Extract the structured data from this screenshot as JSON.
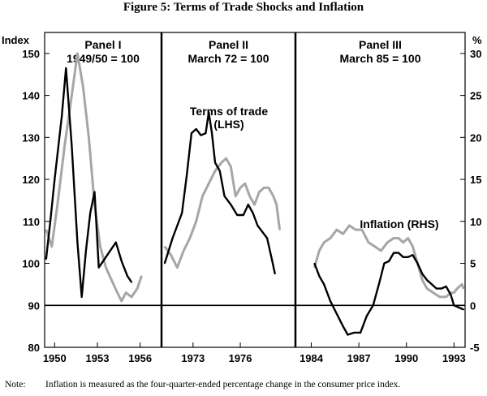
{
  "title": "Figure 5: Terms of Trade Shocks and Inflation",
  "note": {
    "label": "Note:",
    "text": "Inflation is measured as the four-quarter-ended percentage change in the consumer price index."
  },
  "colors": {
    "terms_of_trade": "#000000",
    "inflation": "#a6a6a6",
    "axes": "#000000"
  },
  "chart_data": {
    "type": "line",
    "left_axis": {
      "label": "Index",
      "min": 80,
      "max": 155,
      "ticks": [
        80,
        90,
        100,
        110,
        120,
        130,
        140,
        150
      ]
    },
    "right_axis": {
      "label": "%",
      "min": -5,
      "max": 32.5,
      "ticks": [
        -5,
        0,
        5,
        10,
        15,
        20,
        25,
        30
      ]
    },
    "x_tick_labels": [
      "1950",
      "1953",
      "1956",
      "1973",
      "1976",
      "1984",
      "1987",
      "1990",
      "1993"
    ],
    "panels": [
      {
        "name": "Panel I",
        "base": "1949/50 = 100",
        "x_range": [
          1949.3,
          1957.5
        ],
        "x_ticks": [
          1950,
          1953,
          1956
        ],
        "terms_of_trade": [
          [
            1949.4,
            101
          ],
          [
            1949.7,
            110
          ],
          [
            1950.0,
            120
          ],
          [
            1950.5,
            135
          ],
          [
            1950.8,
            146.5
          ],
          [
            1951.2,
            128
          ],
          [
            1951.6,
            105
          ],
          [
            1951.9,
            92
          ],
          [
            1952.2,
            103
          ],
          [
            1952.5,
            112
          ],
          [
            1952.8,
            117
          ],
          [
            1953.1,
            99
          ],
          [
            1953.4,
            100.5
          ],
          [
            1953.8,
            102.5
          ],
          [
            1954.3,
            105
          ],
          [
            1954.7,
            100.5
          ],
          [
            1955.1,
            97
          ],
          [
            1955.4,
            95.5
          ]
        ],
        "inflation": [
          [
            1949.4,
            9
          ],
          [
            1949.8,
            7
          ],
          [
            1950.2,
            12
          ],
          [
            1950.7,
            19
          ],
          [
            1951.2,
            25
          ],
          [
            1951.6,
            30
          ],
          [
            1952.0,
            26
          ],
          [
            1952.4,
            20
          ],
          [
            1952.8,
            12
          ],
          [
            1953.2,
            7
          ],
          [
            1953.6,
            4.5
          ],
          [
            1954.0,
            3
          ],
          [
            1954.4,
            1.5
          ],
          [
            1954.7,
            0.5
          ],
          [
            1955.0,
            1.5
          ],
          [
            1955.4,
            1
          ],
          [
            1955.8,
            2
          ],
          [
            1956.1,
            3.5
          ]
        ]
      },
      {
        "name": "Panel II",
        "base": "March 72 = 100",
        "x_range": [
          1971.0,
          1979.5
        ],
        "x_ticks": [
          1973,
          1976
        ],
        "terms_of_trade": [
          [
            1971.2,
            100
          ],
          [
            1971.7,
            106
          ],
          [
            1972.0,
            109
          ],
          [
            1972.3,
            112
          ],
          [
            1972.6,
            121
          ],
          [
            1972.9,
            131
          ],
          [
            1973.2,
            132
          ],
          [
            1973.5,
            130.5
          ],
          [
            1973.8,
            131
          ],
          [
            1974.0,
            136
          ],
          [
            1974.2,
            131
          ],
          [
            1974.4,
            124
          ],
          [
            1974.7,
            122
          ],
          [
            1975.0,
            116
          ],
          [
            1975.4,
            114
          ],
          [
            1975.8,
            111.5
          ],
          [
            1976.2,
            111.5
          ],
          [
            1976.5,
            114
          ],
          [
            1976.8,
            112
          ],
          [
            1977.1,
            109
          ],
          [
            1977.4,
            107.5
          ],
          [
            1977.7,
            106
          ],
          [
            1978.0,
            101
          ],
          [
            1978.2,
            97.5
          ]
        ],
        "inflation": [
          [
            1971.2,
            7
          ],
          [
            1971.6,
            6
          ],
          [
            1972.0,
            4.5
          ],
          [
            1972.4,
            6.5
          ],
          [
            1972.8,
            8
          ],
          [
            1973.2,
            10
          ],
          [
            1973.6,
            13
          ],
          [
            1974.0,
            14.5
          ],
          [
            1974.4,
            16
          ],
          [
            1974.8,
            17
          ],
          [
            1975.1,
            17.5
          ],
          [
            1975.4,
            16.5
          ],
          [
            1975.7,
            13
          ],
          [
            1976.0,
            14
          ],
          [
            1976.3,
            14.5
          ],
          [
            1976.6,
            13
          ],
          [
            1976.9,
            12
          ],
          [
            1977.2,
            13.5
          ],
          [
            1977.5,
            14
          ],
          [
            1977.8,
            14
          ],
          [
            1978.1,
            13
          ],
          [
            1978.3,
            12
          ],
          [
            1978.5,
            9
          ]
        ]
      },
      {
        "name": "Panel III",
        "base": "March 85 = 100",
        "x_range": [
          1983.0,
          1993.7
        ],
        "x_ticks": [
          1984,
          1987,
          1990,
          1993
        ],
        "terms_of_trade": [
          [
            1984.2,
            100
          ],
          [
            1984.5,
            97
          ],
          [
            1984.8,
            95
          ],
          [
            1985.2,
            91
          ],
          [
            1985.6,
            88
          ],
          [
            1986.0,
            85
          ],
          [
            1986.3,
            83
          ],
          [
            1986.7,
            83.5
          ],
          [
            1987.1,
            83.5
          ],
          [
            1987.5,
            87.5
          ],
          [
            1987.9,
            90
          ],
          [
            1988.3,
            95.5
          ],
          [
            1988.6,
            100
          ],
          [
            1988.9,
            100.5
          ],
          [
            1989.2,
            102.5
          ],
          [
            1989.5,
            102.5
          ],
          [
            1989.8,
            101.5
          ],
          [
            1990.1,
            101.5
          ],
          [
            1990.4,
            102
          ],
          [
            1990.7,
            100
          ],
          [
            1991.0,
            97.5
          ],
          [
            1991.3,
            96
          ],
          [
            1991.6,
            95
          ],
          [
            1991.9,
            94
          ],
          [
            1992.2,
            94
          ],
          [
            1992.5,
            94.5
          ],
          [
            1992.8,
            92.5
          ],
          [
            1993.0,
            90
          ],
          [
            1993.3,
            89.5
          ],
          [
            1993.6,
            89
          ]
        ],
        "inflation": [
          [
            1984.2,
            4.5
          ],
          [
            1984.5,
            6.5
          ],
          [
            1984.8,
            7.5
          ],
          [
            1985.2,
            8
          ],
          [
            1985.6,
            9
          ],
          [
            1986.0,
            8.5
          ],
          [
            1986.4,
            9.5
          ],
          [
            1986.8,
            9
          ],
          [
            1987.2,
            9
          ],
          [
            1987.6,
            7.5
          ],
          [
            1988.0,
            7
          ],
          [
            1988.4,
            6.5
          ],
          [
            1988.8,
            7.5
          ],
          [
            1989.2,
            8
          ],
          [
            1989.5,
            8
          ],
          [
            1989.8,
            7.5
          ],
          [
            1990.1,
            8
          ],
          [
            1990.4,
            7
          ],
          [
            1990.7,
            5
          ],
          [
            1991.0,
            3
          ],
          [
            1991.3,
            2
          ],
          [
            1991.7,
            1.5
          ],
          [
            1992.1,
            1
          ],
          [
            1992.5,
            1
          ],
          [
            1992.8,
            1.5
          ],
          [
            1993.0,
            1.5
          ],
          [
            1993.2,
            2
          ],
          [
            1993.5,
            2.5
          ],
          [
            1993.6,
            2
          ]
        ]
      }
    ],
    "annotations": [
      {
        "text": [
          "Terms of trade",
          "(LHS)"
        ],
        "panel": 1
      },
      {
        "text": [
          "Inflation (RHS)"
        ],
        "panel": 2
      }
    ],
    "reference_line": {
      "axis": "left",
      "value": 90
    }
  }
}
